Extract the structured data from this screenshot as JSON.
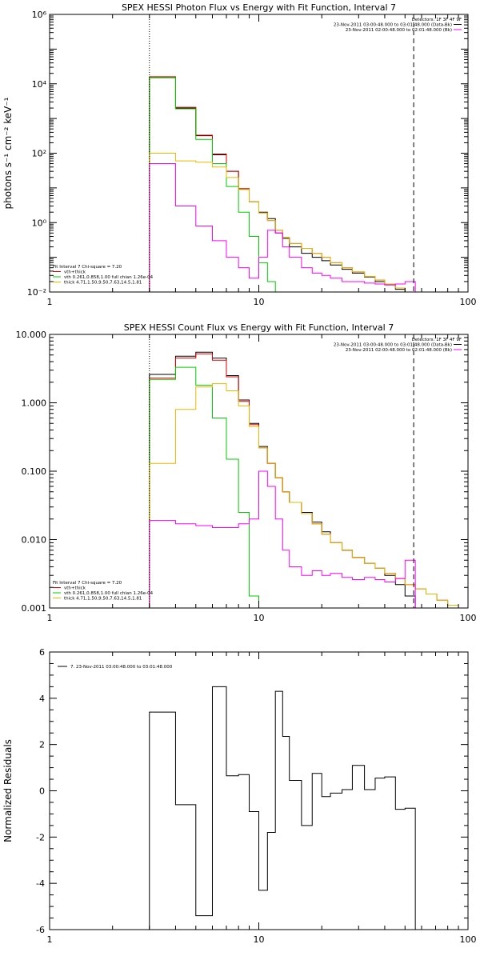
{
  "colors": {
    "data": "#000000",
    "total": "#e00000",
    "vth": "#00cc00",
    "thick": "#e8b800",
    "bk": "#ff00ff"
  },
  "chart_data": [
    {
      "type": "line",
      "title": "SPEX HESSI Photon Flux vs Energy with Fit Function, Interval 7",
      "ylabel": "photons s⁻¹ cm⁻² keV⁻¹",
      "xscale": "log",
      "yscale": "log",
      "xlim": [
        1,
        100
      ],
      "ylim": [
        0.01,
        1000000
      ],
      "xticks": [
        "1",
        "10",
        "100"
      ],
      "yticks": [
        "10⁻²",
        "10⁰",
        "10²",
        "10⁴",
        "10⁶"
      ],
      "vlines": [
        3,
        55
      ],
      "legend_top": [
        "Detectors: 1F 3F 4F 9F",
        "23-Nov-2011 03:00:48.000 to 03:01:48.000 (Data-Bk)",
        "23-Nov-2011 02:00:48.000 to 02:01:48.000 (Bk)"
      ],
      "legend_bottom": [
        "Fit Interval 7   Chi-square = 7.20",
        "vth+thick",
        "vth 0.261,0.858,1.00  full chian 1.26e-04",
        "thick 4.71,1.50,9.50,7.63,14.5,1.81"
      ],
      "edges": [
        3,
        4,
        5,
        6,
        7,
        8,
        9,
        10,
        11,
        12,
        13,
        14,
        16,
        18,
        20,
        22,
        25,
        28,
        32,
        36,
        40,
        45,
        50,
        56,
        63,
        71
      ],
      "series": [
        {
          "name": "23-Nov-2011 03:00:48.000 to 03:01:48.000 (Data-Bk)",
          "values": [
            15000,
            2000,
            320,
            90,
            30,
            9.5,
            4,
            2,
            1.3,
            0.5,
            0.35,
            0.2,
            0.13,
            0.1,
            0.08,
            0.06,
            0.045,
            0.035,
            0.027,
            0.02,
            0.016,
            0.012,
            0.007,
            0.004,
            null
          ]
        },
        {
          "name": "vth+thick",
          "values": [
            16000,
            2100,
            330,
            95,
            30,
            9.5,
            4,
            1.9,
            1.15,
            0.6,
            0.38,
            0.25,
            0.18,
            0.13,
            0.1,
            0.07,
            0.05,
            0.038,
            0.028,
            0.022,
            0.017,
            0.013,
            0.01,
            0.008,
            0.006
          ]
        },
        {
          "name": "vth 0.261,0.858,1.00  full chian 1.26e-04",
          "values": [
            15000,
            1900,
            250,
            50,
            11,
            2,
            0.4,
            0.07,
            0.02,
            null,
            null,
            null,
            null,
            null,
            null,
            null,
            null,
            null,
            null,
            null,
            null,
            null,
            null,
            null,
            null
          ]
        },
        {
          "name": "thick 4.71,1.50,9.50,7.63,14.5,1.81",
          "values": [
            100,
            60,
            55,
            40,
            20,
            9,
            4,
            1.9,
            1.15,
            0.6,
            0.38,
            0.25,
            0.18,
            0.13,
            0.1,
            0.07,
            0.05,
            0.038,
            0.028,
            0.022,
            0.017,
            0.013,
            0.01,
            0.008,
            0.006
          ]
        },
        {
          "name": "23-Nov-2011 02:00:48.000 to 02:01:48.000 (Bk)",
          "values": [
            50,
            3,
            0.8,
            0.3,
            0.1,
            0.05,
            0.025,
            0.1,
            0.6,
            0.5,
            0.2,
            0.1,
            0.05,
            0.035,
            0.03,
            0.025,
            0.02,
            0.02,
            0.018,
            0.017,
            0.016,
            0.017,
            0.02,
            null,
            null
          ]
        }
      ]
    },
    {
      "type": "line",
      "title": "SPEX HESSI Count Flux vs Energy with Fit Function, Interval 7",
      "ylabel": "",
      "xscale": "log",
      "yscale": "log",
      "xlim": [
        1,
        100
      ],
      "ylim": [
        0.001,
        10
      ],
      "xticks": [
        "1",
        "10",
        "100"
      ],
      "yticks": [
        "0.001",
        "0.010",
        "0.100",
        "1.000",
        "10.000"
      ],
      "vlines": [
        3,
        55
      ],
      "legend_top": [
        "Detectors: 1F 3F 4F 9F",
        "23-Nov-2011 03:00:48.000 to 03:01:48.000 (Data-Bk)",
        "23-Nov-2011 02:00:48.000 to 02:01:48.000 (Bk)"
      ],
      "legend_bottom": [
        "Fit Interval 7   Chi-square = 7.20",
        "vth+thick",
        "vth 0.261,0.858,1.00  full chian 1.26e-04",
        "thick 4.71,1.50,9.50,7.63,14.5,1.81"
      ],
      "edges": [
        3,
        4,
        5,
        6,
        7,
        8,
        9,
        10,
        11,
        12,
        13,
        14,
        16,
        18,
        20,
        22,
        25,
        28,
        32,
        36,
        40,
        45,
        50,
        56,
        63,
        71,
        80,
        90,
        100
      ],
      "series": [
        {
          "name": "23-Nov-2011 03:00:48.000 to 03:01:48.000 (Data-Bk)",
          "values": [
            2.6,
            4.8,
            5.5,
            4.5,
            2.5,
            1.1,
            0.5,
            0.23,
            0.13,
            0.08,
            0.05,
            0.035,
            0.025,
            0.018,
            0.013,
            0.009,
            0.007,
            0.0055,
            0.0045,
            0.0038,
            0.003,
            0.0022,
            0.0015,
            null,
            null,
            null,
            null,
            null
          ]
        },
        {
          "name": "vth+thick",
          "values": [
            2.3,
            4.5,
            5.2,
            4.2,
            2.4,
            1.05,
            0.48,
            0.22,
            0.13,
            0.08,
            0.05,
            0.035,
            0.024,
            0.017,
            0.012,
            0.009,
            0.007,
            0.0055,
            0.0045,
            0.0038,
            0.0032,
            0.0027,
            0.0022,
            0.0019,
            0.0016,
            0.0013,
            0.0011,
            0.001
          ]
        },
        {
          "name": "vth 0.261,0.858,1.00  full chian 1.26e-04",
          "values": [
            2.2,
            3.3,
            1.8,
            0.6,
            0.15,
            0.025,
            0.0015,
            null,
            null,
            null,
            null,
            null,
            null,
            null,
            null,
            null,
            null,
            null,
            null,
            null,
            null,
            null,
            null,
            null,
            null,
            null,
            null,
            null
          ]
        },
        {
          "name": "thick 4.71,1.50,9.50,7.63,14.5,1.81",
          "values": [
            0.13,
            0.8,
            1.7,
            1.9,
            1.5,
            0.9,
            0.45,
            0.22,
            0.13,
            0.08,
            0.05,
            0.035,
            0.024,
            0.017,
            0.012,
            0.009,
            0.007,
            0.0055,
            0.0045,
            0.0038,
            0.0032,
            0.0027,
            0.0022,
            0.0019,
            0.0016,
            0.0013,
            0.0011,
            0.001
          ]
        },
        {
          "name": "23-Nov-2011 02:00:48.000 to 02:01:48.000 (Bk)",
          "values": [
            0.019,
            0.017,
            0.016,
            0.015,
            0.015,
            0.017,
            0.02,
            0.1,
            0.06,
            0.02,
            0.007,
            0.004,
            0.003,
            0.0035,
            0.003,
            0.0032,
            0.0028,
            0.0026,
            0.0028,
            0.0026,
            0.0024,
            0.0027,
            0.005,
            null,
            null,
            null,
            null,
            null
          ]
        }
      ]
    },
    {
      "type": "line",
      "title": "",
      "ylabel": "Normalized Residuals",
      "xscale": "log",
      "yscale": "linear",
      "xlim": [
        1,
        100
      ],
      "ylim": [
        -6,
        6
      ],
      "xticks": [
        "1",
        "10",
        "100"
      ],
      "yticks": [
        "-6",
        "-4",
        "-2",
        "0",
        "2",
        "4",
        "6"
      ],
      "legend_top": [
        "7. 23-Nov-2011 03:00:48.000 to 03:01:48.000"
      ],
      "edges": [
        3,
        4,
        5,
        6,
        7,
        8,
        9,
        10,
        11,
        12,
        13,
        14,
        16,
        18,
        20,
        22,
        25,
        28,
        32,
        36,
        40,
        45,
        50,
        56
      ],
      "series": [
        {
          "name": "7. 23-Nov-2011 03:00:48.000 to 03:01:48.000",
          "values": [
            3.4,
            -0.6,
            -5.4,
            4.5,
            0.65,
            0.7,
            -0.9,
            -4.3,
            -1.8,
            4.3,
            2.35,
            0.45,
            -1.5,
            0.75,
            -0.25,
            -0.1,
            0.05,
            1.1,
            0.05,
            0.55,
            0.6,
            -0.8,
            -0.75
          ]
        }
      ]
    }
  ]
}
